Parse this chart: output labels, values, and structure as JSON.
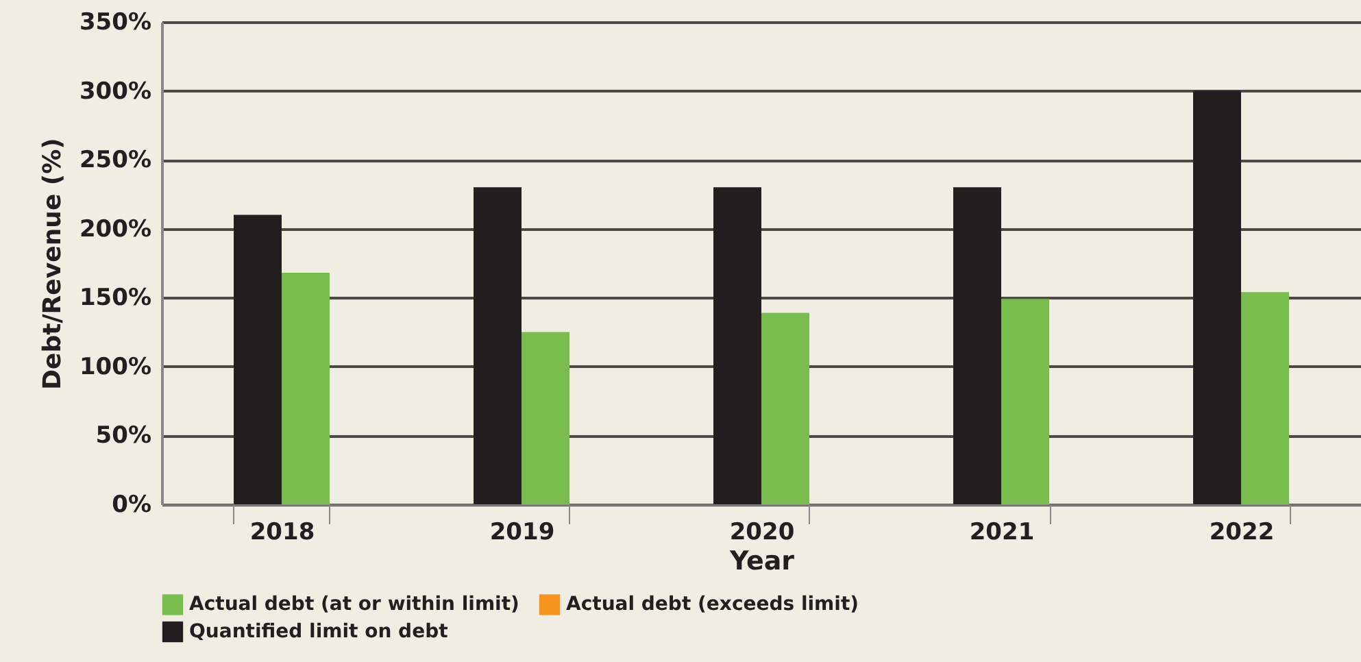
{
  "chart_data": {
    "type": "bar",
    "xlabel": "Year",
    "ylabel": "Debt/Revenue (%)",
    "categories": [
      "2018",
      "2019",
      "2020",
      "2021",
      "2022"
    ],
    "series": [
      {
        "name": "Actual debt (at or within limit)",
        "color": "#79bd4f",
        "values": [
          168,
          125,
          139,
          149,
          154
        ]
      },
      {
        "name": "Actual debt (exceeds limit)",
        "color": "#f7941d",
        "values": [
          null,
          null,
          null,
          null,
          null
        ]
      },
      {
        "name": "Quantified limit on debt",
        "color": "#231f20",
        "values": [
          210,
          230,
          230,
          230,
          300
        ]
      }
    ],
    "ylim": [
      0,
      350
    ],
    "yticks": [
      {
        "value": 0,
        "label": "0%"
      },
      {
        "value": 50,
        "label": "50%"
      },
      {
        "value": 100,
        "label": "100%"
      },
      {
        "value": 150,
        "label": "150%"
      },
      {
        "value": 200,
        "label": "200%"
      },
      {
        "value": 250,
        "label": "250%"
      },
      {
        "value": 300,
        "label": "300%"
      },
      {
        "value": 350,
        "label": "350%"
      }
    ],
    "grid": "y",
    "legend": "bottom"
  }
}
